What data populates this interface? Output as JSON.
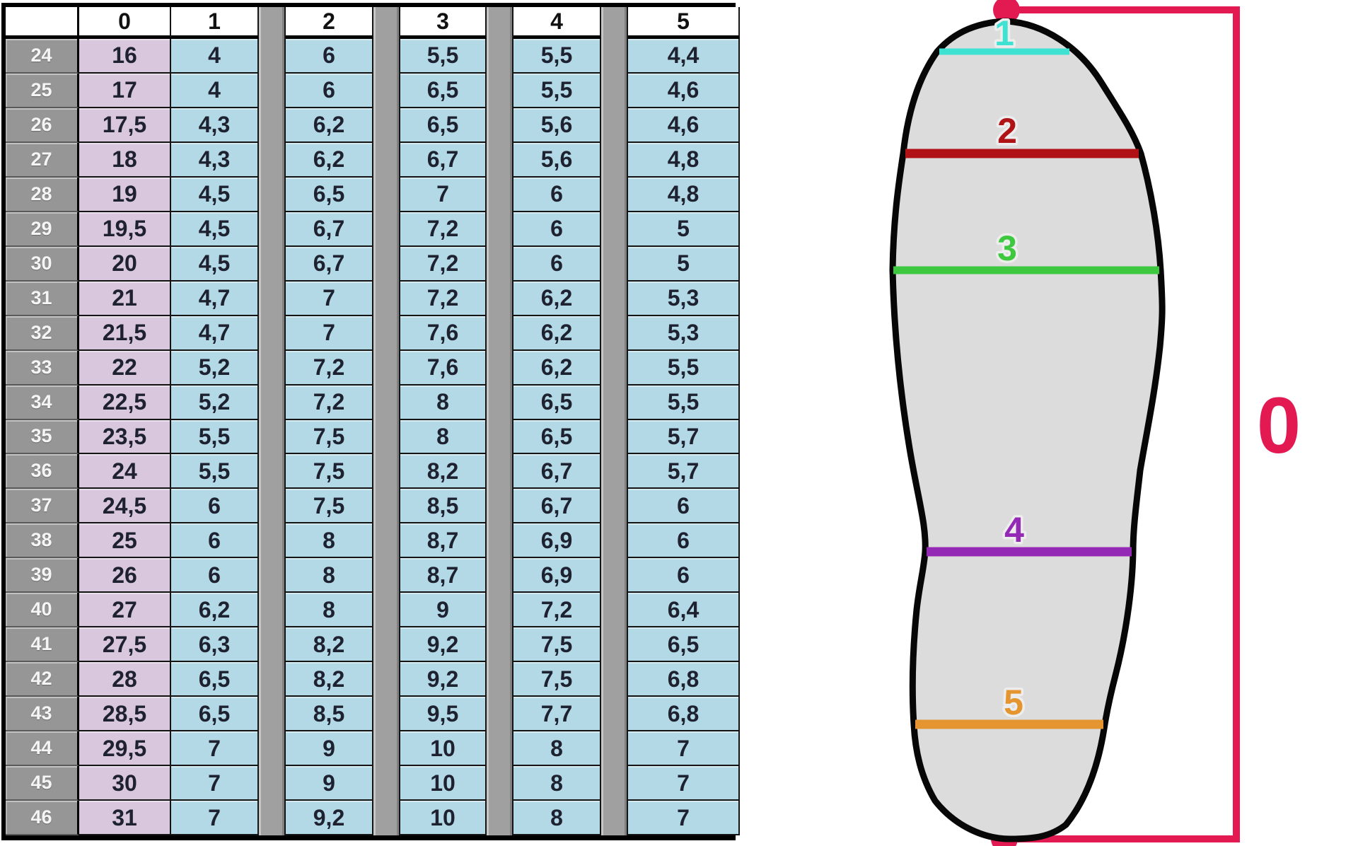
{
  "table": {
    "corner_label": "",
    "column_headers": [
      "0",
      "1",
      "2",
      "3",
      "4",
      "5"
    ],
    "rows": [
      {
        "size": "24",
        "values": [
          "16",
          "4",
          "6",
          "5,5",
          "5,5",
          "4,4"
        ]
      },
      {
        "size": "25",
        "values": [
          "17",
          "4",
          "6",
          "6,5",
          "5,5",
          "4,6"
        ]
      },
      {
        "size": "26",
        "values": [
          "17,5",
          "4,3",
          "6,2",
          "6,5",
          "5,6",
          "4,6"
        ]
      },
      {
        "size": "27",
        "values": [
          "18",
          "4,3",
          "6,2",
          "6,7",
          "5,6",
          "4,8"
        ]
      },
      {
        "size": "28",
        "values": [
          "19",
          "4,5",
          "6,5",
          "7",
          "6",
          "4,8"
        ]
      },
      {
        "size": "29",
        "values": [
          "19,5",
          "4,5",
          "6,7",
          "7,2",
          "6",
          "5"
        ]
      },
      {
        "size": "30",
        "values": [
          "20",
          "4,5",
          "6,7",
          "7,2",
          "6",
          "5"
        ]
      },
      {
        "size": "31",
        "values": [
          "21",
          "4,7",
          "7",
          "7,2",
          "6,2",
          "5,3"
        ]
      },
      {
        "size": "32",
        "values": [
          "21,5",
          "4,7",
          "7",
          "7,6",
          "6,2",
          "5,3"
        ]
      },
      {
        "size": "33",
        "values": [
          "22",
          "5,2",
          "7,2",
          "7,6",
          "6,2",
          "5,5"
        ]
      },
      {
        "size": "34",
        "values": [
          "22,5",
          "5,2",
          "7,2",
          "8",
          "6,5",
          "5,5"
        ]
      },
      {
        "size": "35",
        "values": [
          "23,5",
          "5,5",
          "7,5",
          "8",
          "6,5",
          "5,7"
        ]
      },
      {
        "size": "36",
        "values": [
          "24",
          "5,5",
          "7,5",
          "8,2",
          "6,7",
          "5,7"
        ]
      },
      {
        "size": "37",
        "values": [
          "24,5",
          "6",
          "7,5",
          "8,5",
          "6,7",
          "6"
        ]
      },
      {
        "size": "38",
        "values": [
          "25",
          "6",
          "8",
          "8,7",
          "6,9",
          "6"
        ]
      },
      {
        "size": "39",
        "values": [
          "26",
          "6",
          "8",
          "8,7",
          "6,9",
          "6"
        ]
      },
      {
        "size": "40",
        "values": [
          "27",
          "6,2",
          "8",
          "9",
          "7,2",
          "6,4"
        ]
      },
      {
        "size": "41",
        "values": [
          "27,5",
          "6,3",
          "8,2",
          "9,2",
          "7,5",
          "6,5"
        ]
      },
      {
        "size": "42",
        "values": [
          "28",
          "6,5",
          "8,2",
          "9,2",
          "7,5",
          "6,8"
        ]
      },
      {
        "size": "43",
        "values": [
          "28,5",
          "6,5",
          "8,5",
          "9,5",
          "7,7",
          "6,8"
        ]
      },
      {
        "size": "44",
        "values": [
          "29,5",
          "7",
          "9",
          "10",
          "8",
          "7"
        ]
      },
      {
        "size": "45",
        "values": [
          "30",
          "7",
          "9",
          "10",
          "8",
          "7"
        ]
      },
      {
        "size": "46",
        "values": [
          "31",
          "7",
          "9,2",
          "10",
          "8",
          "7"
        ]
      }
    ]
  },
  "diagram": {
    "length_marker": {
      "label": "0",
      "color": "#e31a52"
    },
    "width_lines": [
      {
        "label": "1",
        "color": "#3fe2d2"
      },
      {
        "label": "2",
        "color": "#b01316"
      },
      {
        "label": "3",
        "color": "#3dc83f"
      },
      {
        "label": "4",
        "color": "#9329b4"
      },
      {
        "label": "5",
        "color": "#e5952f"
      }
    ]
  },
  "colors": {
    "row_header_bg": "#969696",
    "separator_bg": "#a0a0a0",
    "col0_bg": "#d9c7dd",
    "data_bg": "#b3d8e6",
    "header_bg": "#ffffff",
    "border": "#141414",
    "foot_fill": "#dcdcdc",
    "foot_stroke": "#070707"
  }
}
